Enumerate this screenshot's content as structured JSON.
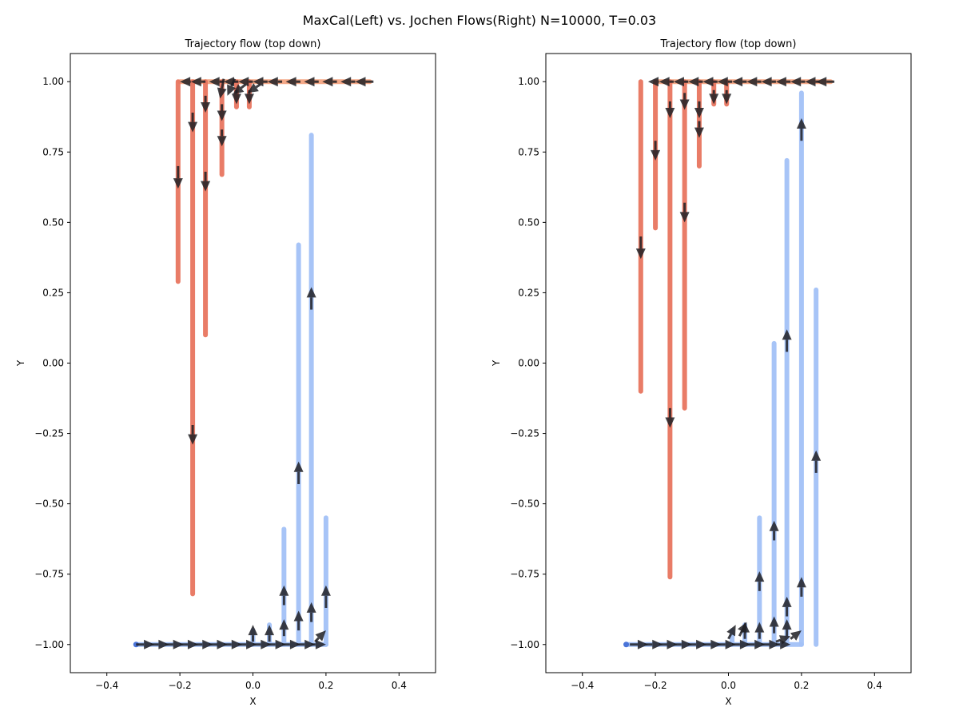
{
  "figure": {
    "suptitle": "MaxCal(Left) vs. Jochen Flows(Right)  N=10000, T=0.03"
  },
  "chart_data": [
    {
      "type": "scatter",
      "title": "Trajectory flow (top down)",
      "xlabel": "X",
      "ylabel": "Y",
      "xlim": [
        -0.5,
        0.5
      ],
      "ylim": [
        -1.1,
        1.1
      ],
      "xticks": [
        -0.4,
        -0.2,
        0.0,
        0.2,
        0.4
      ],
      "yticks": [
        -1.0,
        -0.75,
        -0.5,
        -0.25,
        0.0,
        0.25,
        0.5,
        0.75,
        1.0
      ],
      "xtick_labels": [
        "−0.4",
        "−0.2",
        "0.0",
        "0.2",
        "0.4"
      ],
      "ytick_labels": [
        "−1.00",
        "−0.75",
        "−0.50",
        "−0.25",
        "0.00",
        "0.25",
        "0.50",
        "0.75",
        "1.00"
      ],
      "grid": false,
      "colors": {
        "red": "#e8765f",
        "red_light": "#f4a582",
        "blue": "#a3c1f7",
        "blue_dark": "#4a74d8",
        "arrow": "#1f1f24"
      },
      "red_horizontal": {
        "x_start": 0.32,
        "x_end": -0.2,
        "y": 1.0
      },
      "red_segments": [
        {
          "x": -0.205,
          "y_start": 1.0,
          "y_end": 0.29
        },
        {
          "x": -0.165,
          "y_start": 1.0,
          "y_end": -0.82
        },
        {
          "x": -0.13,
          "y_start": 1.0,
          "y_end": 0.1
        },
        {
          "x": -0.085,
          "y_start": 1.0,
          "y_end": 0.67
        },
        {
          "x": -0.045,
          "y_start": 1.0,
          "y_end": 0.91
        },
        {
          "x": -0.01,
          "y_start": 1.0,
          "y_end": 0.91
        }
      ],
      "blue_horizontal": {
        "x_start": -0.32,
        "x_end": 0.2,
        "y": -1.0
      },
      "blue_segments": [
        {
          "x": 0.0,
          "y_start": -1.0,
          "y_end": -0.95
        },
        {
          "x": 0.045,
          "y_start": -1.0,
          "y_end": -0.93
        },
        {
          "x": 0.085,
          "y_start": -1.0,
          "y_end": -0.59
        },
        {
          "x": 0.125,
          "y_start": -1.0,
          "y_end": 0.42
        },
        {
          "x": 0.16,
          "y_start": -1.0,
          "y_end": 0.81
        },
        {
          "x": 0.2,
          "y_start": -1.0,
          "y_end": -0.55
        }
      ],
      "arrows": [
        {
          "x": 0.33,
          "y": 1.0,
          "dx": -0.05,
          "dy": 0
        },
        {
          "x": 0.28,
          "y": 1.0,
          "dx": -0.04,
          "dy": 0
        },
        {
          "x": 0.23,
          "y": 1.0,
          "dx": -0.04,
          "dy": 0
        },
        {
          "x": 0.18,
          "y": 1.0,
          "dx": -0.04,
          "dy": 0
        },
        {
          "x": 0.13,
          "y": 1.0,
          "dx": -0.04,
          "dy": 0
        },
        {
          "x": 0.08,
          "y": 1.0,
          "dx": -0.04,
          "dy": 0
        },
        {
          "x": 0.04,
          "y": 1.0,
          "dx": -0.04,
          "dy": 0
        },
        {
          "x": 0.0,
          "y": 1.0,
          "dx": -0.04,
          "dy": 0
        },
        {
          "x": -0.04,
          "y": 1.0,
          "dx": -0.04,
          "dy": 0
        },
        {
          "x": -0.08,
          "y": 1.0,
          "dx": -0.04,
          "dy": 0
        },
        {
          "x": -0.13,
          "y": 1.0,
          "dx": -0.04,
          "dy": 0
        },
        {
          "x": -0.17,
          "y": 1.0,
          "dx": -0.03,
          "dy": 0
        },
        {
          "x": 0.02,
          "y": 0.99,
          "dx": -0.035,
          "dy": -0.03
        },
        {
          "x": -0.02,
          "y": 0.99,
          "dx": -0.035,
          "dy": -0.035
        },
        {
          "x": -0.05,
          "y": 1.01,
          "dx": -0.02,
          "dy": -0.06
        },
        {
          "x": -0.08,
          "y": 1.01,
          "dx": -0.01,
          "dy": -0.07
        },
        {
          "x": -0.01,
          "y": 0.97,
          "dx": 0,
          "dy": -0.05
        },
        {
          "x": -0.045,
          "y": 0.97,
          "dx": 0,
          "dy": -0.05
        },
        {
          "x": -0.085,
          "y": 0.92,
          "dx": 0,
          "dy": -0.06
        },
        {
          "x": -0.085,
          "y": 0.83,
          "dx": 0,
          "dy": -0.06
        },
        {
          "x": -0.13,
          "y": 0.95,
          "dx": 0,
          "dy": -0.06
        },
        {
          "x": -0.13,
          "y": 0.68,
          "dx": 0,
          "dy": -0.07
        },
        {
          "x": -0.165,
          "y": 0.89,
          "dx": 0,
          "dy": -0.07
        },
        {
          "x": -0.165,
          "y": -0.22,
          "dx": 0,
          "dy": -0.07
        },
        {
          "x": -0.205,
          "y": 0.7,
          "dx": 0,
          "dy": -0.08
        },
        {
          "x": -0.32,
          "y": -1.0,
          "dx": 0.05,
          "dy": 0
        },
        {
          "x": -0.28,
          "y": -1.0,
          "dx": 0.05,
          "dy": 0
        },
        {
          "x": -0.24,
          "y": -1.0,
          "dx": 0.05,
          "dy": 0
        },
        {
          "x": -0.2,
          "y": -1.0,
          "dx": 0.05,
          "dy": 0
        },
        {
          "x": -0.16,
          "y": -1.0,
          "dx": 0.05,
          "dy": 0
        },
        {
          "x": -0.12,
          "y": -1.0,
          "dx": 0.05,
          "dy": 0
        },
        {
          "x": -0.08,
          "y": -1.0,
          "dx": 0.05,
          "dy": 0
        },
        {
          "x": -0.04,
          "y": -1.0,
          "dx": 0.05,
          "dy": 0
        },
        {
          "x": 0.0,
          "y": -1.0,
          "dx": 0.05,
          "dy": 0
        },
        {
          "x": 0.04,
          "y": -1.0,
          "dx": 0.05,
          "dy": 0
        },
        {
          "x": 0.08,
          "y": -1.0,
          "dx": 0.05,
          "dy": 0
        },
        {
          "x": 0.12,
          "y": -1.0,
          "dx": 0.05,
          "dy": 0
        },
        {
          "x": 0.16,
          "y": -1.0,
          "dx": 0.04,
          "dy": 0
        },
        {
          "x": 0.17,
          "y": -0.99,
          "dx": 0.03,
          "dy": 0.04
        },
        {
          "x": 0.0,
          "y": -0.99,
          "dx": 0,
          "dy": 0.06
        },
        {
          "x": 0.045,
          "y": -0.99,
          "dx": 0,
          "dy": 0.06
        },
        {
          "x": 0.085,
          "y": -0.97,
          "dx": 0,
          "dy": 0.06
        },
        {
          "x": 0.085,
          "y": -0.86,
          "dx": 0,
          "dy": 0.07
        },
        {
          "x": 0.125,
          "y": -0.95,
          "dx": 0,
          "dy": 0.07
        },
        {
          "x": 0.125,
          "y": -0.43,
          "dx": 0,
          "dy": 0.08
        },
        {
          "x": 0.16,
          "y": -0.92,
          "dx": 0,
          "dy": 0.07
        },
        {
          "x": 0.16,
          "y": 0.19,
          "dx": 0,
          "dy": 0.08
        },
        {
          "x": 0.2,
          "y": -0.87,
          "dx": 0,
          "dy": 0.08
        }
      ]
    },
    {
      "type": "scatter",
      "title": "Trajectory flow (top down)",
      "xlabel": "X",
      "ylabel": "Y",
      "xlim": [
        -0.5,
        0.5
      ],
      "ylim": [
        -1.1,
        1.1
      ],
      "xticks": [
        -0.4,
        -0.2,
        0.0,
        0.2,
        0.4
      ],
      "yticks": [
        -1.0,
        -0.75,
        -0.5,
        -0.25,
        0.0,
        0.25,
        0.5,
        0.75,
        1.0
      ],
      "xtick_labels": [
        "−0.4",
        "−0.2",
        "0.0",
        "0.2",
        "0.4"
      ],
      "ytick_labels": [
        "−1.00",
        "−0.75",
        "−0.50",
        "−0.25",
        "0.00",
        "0.25",
        "0.50",
        "0.75",
        "1.00"
      ],
      "grid": false,
      "colors": {
        "red": "#e8765f",
        "red_light": "#f4a582",
        "blue": "#a3c1f7",
        "blue_dark": "#4a74d8",
        "arrow": "#1f1f24"
      },
      "red_horizontal": {
        "x_start": 0.28,
        "x_end": -0.2,
        "y": 1.0
      },
      "red_segments": [
        {
          "x": -0.24,
          "y_start": 1.0,
          "y_end": -0.1
        },
        {
          "x": -0.2,
          "y_start": 1.0,
          "y_end": 0.48
        },
        {
          "x": -0.16,
          "y_start": 1.0,
          "y_end": -0.76
        },
        {
          "x": -0.12,
          "y_start": 1.0,
          "y_end": -0.16
        },
        {
          "x": -0.08,
          "y_start": 1.0,
          "y_end": 0.7
        },
        {
          "x": -0.04,
          "y_start": 1.0,
          "y_end": 0.92
        },
        {
          "x": -0.005,
          "y_start": 1.0,
          "y_end": 0.92
        }
      ],
      "blue_horizontal": {
        "x_start": -0.28,
        "x_end": 0.2,
        "y": -1.0
      },
      "blue_segments": [
        {
          "x": 0.01,
          "y_start": -1.0,
          "y_end": -0.95
        },
        {
          "x": 0.045,
          "y_start": -1.0,
          "y_end": -0.93
        },
        {
          "x": 0.085,
          "y_start": -1.0,
          "y_end": -0.55
        },
        {
          "x": 0.125,
          "y_start": -1.0,
          "y_end": 0.07
        },
        {
          "x": 0.16,
          "y_start": -1.0,
          "y_end": 0.72
        },
        {
          "x": 0.2,
          "y_start": -1.0,
          "y_end": 0.96
        },
        {
          "x": 0.24,
          "y_start": -1.0,
          "y_end": 0.26
        }
      ],
      "arrows": [
        {
          "x": 0.29,
          "y": 1.0,
          "dx": -0.05,
          "dy": 0
        },
        {
          "x": 0.25,
          "y": 1.0,
          "dx": -0.04,
          "dy": 0
        },
        {
          "x": 0.21,
          "y": 1.0,
          "dx": -0.04,
          "dy": 0
        },
        {
          "x": 0.17,
          "y": 1.0,
          "dx": -0.04,
          "dy": 0
        },
        {
          "x": 0.13,
          "y": 1.0,
          "dx": -0.04,
          "dy": 0
        },
        {
          "x": 0.09,
          "y": 1.0,
          "dx": -0.04,
          "dy": 0
        },
        {
          "x": 0.05,
          "y": 1.0,
          "dx": -0.04,
          "dy": 0
        },
        {
          "x": 0.01,
          "y": 1.0,
          "dx": -0.04,
          "dy": 0
        },
        {
          "x": -0.03,
          "y": 1.0,
          "dx": -0.04,
          "dy": 0
        },
        {
          "x": -0.07,
          "y": 1.0,
          "dx": -0.04,
          "dy": 0
        },
        {
          "x": -0.11,
          "y": 1.0,
          "dx": -0.04,
          "dy": 0
        },
        {
          "x": -0.15,
          "y": 1.0,
          "dx": -0.04,
          "dy": 0
        },
        {
          "x": -0.19,
          "y": 1.0,
          "dx": -0.03,
          "dy": 0
        },
        {
          "x": -0.005,
          "y": 0.97,
          "dx": 0,
          "dy": -0.05
        },
        {
          "x": -0.04,
          "y": 0.97,
          "dx": 0,
          "dy": -0.05
        },
        {
          "x": -0.08,
          "y": 0.93,
          "dx": 0,
          "dy": -0.06
        },
        {
          "x": -0.08,
          "y": 0.86,
          "dx": 0,
          "dy": -0.06
        },
        {
          "x": -0.12,
          "y": 0.96,
          "dx": 0,
          "dy": -0.06
        },
        {
          "x": -0.12,
          "y": 0.57,
          "dx": 0,
          "dy": -0.07
        },
        {
          "x": -0.16,
          "y": 0.93,
          "dx": 0,
          "dy": -0.06
        },
        {
          "x": -0.16,
          "y": -0.16,
          "dx": 0,
          "dy": -0.07
        },
        {
          "x": -0.2,
          "y": 0.79,
          "dx": 0,
          "dy": -0.07
        },
        {
          "x": -0.24,
          "y": 0.45,
          "dx": 0,
          "dy": -0.08
        },
        {
          "x": -0.27,
          "y": -1.0,
          "dx": 0.05,
          "dy": 0
        },
        {
          "x": -0.23,
          "y": -1.0,
          "dx": 0.05,
          "dy": 0
        },
        {
          "x": -0.19,
          "y": -1.0,
          "dx": 0.05,
          "dy": 0
        },
        {
          "x": -0.15,
          "y": -1.0,
          "dx": 0.05,
          "dy": 0
        },
        {
          "x": -0.11,
          "y": -1.0,
          "dx": 0.05,
          "dy": 0
        },
        {
          "x": -0.07,
          "y": -1.0,
          "dx": 0.05,
          "dy": 0
        },
        {
          "x": -0.03,
          "y": -1.0,
          "dx": 0.05,
          "dy": 0
        },
        {
          "x": 0.01,
          "y": -1.0,
          "dx": 0.05,
          "dy": 0
        },
        {
          "x": 0.05,
          "y": -1.0,
          "dx": 0.05,
          "dy": 0
        },
        {
          "x": 0.09,
          "y": -1.0,
          "dx": 0.05,
          "dy": 0
        },
        {
          "x": 0.13,
          "y": -1.0,
          "dx": 0.04,
          "dy": 0
        },
        {
          "x": 0.0,
          "y": -0.98,
          "dx": 0.02,
          "dy": 0.05
        },
        {
          "x": 0.03,
          "y": -0.97,
          "dx": 0.02,
          "dy": 0.05
        },
        {
          "x": 0.045,
          "y": -0.98,
          "dx": 0,
          "dy": 0.06
        },
        {
          "x": 0.085,
          "y": -0.98,
          "dx": 0,
          "dy": 0.06
        },
        {
          "x": 0.085,
          "y": -0.81,
          "dx": 0,
          "dy": 0.07
        },
        {
          "x": 0.125,
          "y": -0.96,
          "dx": 0,
          "dy": 0.06
        },
        {
          "x": 0.125,
          "y": -0.63,
          "dx": 0,
          "dy": 0.07
        },
        {
          "x": 0.16,
          "y": -0.97,
          "dx": 0,
          "dy": 0.06
        },
        {
          "x": 0.16,
          "y": -0.9,
          "dx": 0,
          "dy": 0.07
        },
        {
          "x": 0.16,
          "y": 0.04,
          "dx": 0,
          "dy": 0.08
        },
        {
          "x": 0.2,
          "y": -0.83,
          "dx": 0,
          "dy": 0.07
        },
        {
          "x": 0.2,
          "y": 0.79,
          "dx": 0,
          "dy": 0.08
        },
        {
          "x": 0.24,
          "y": -0.39,
          "dx": 0,
          "dy": 0.08
        },
        {
          "x": 0.13,
          "y": -0.99,
          "dx": 0.04,
          "dy": 0.02
        },
        {
          "x": 0.17,
          "y": -0.98,
          "dx": 0.03,
          "dy": 0.03
        }
      ]
    }
  ]
}
